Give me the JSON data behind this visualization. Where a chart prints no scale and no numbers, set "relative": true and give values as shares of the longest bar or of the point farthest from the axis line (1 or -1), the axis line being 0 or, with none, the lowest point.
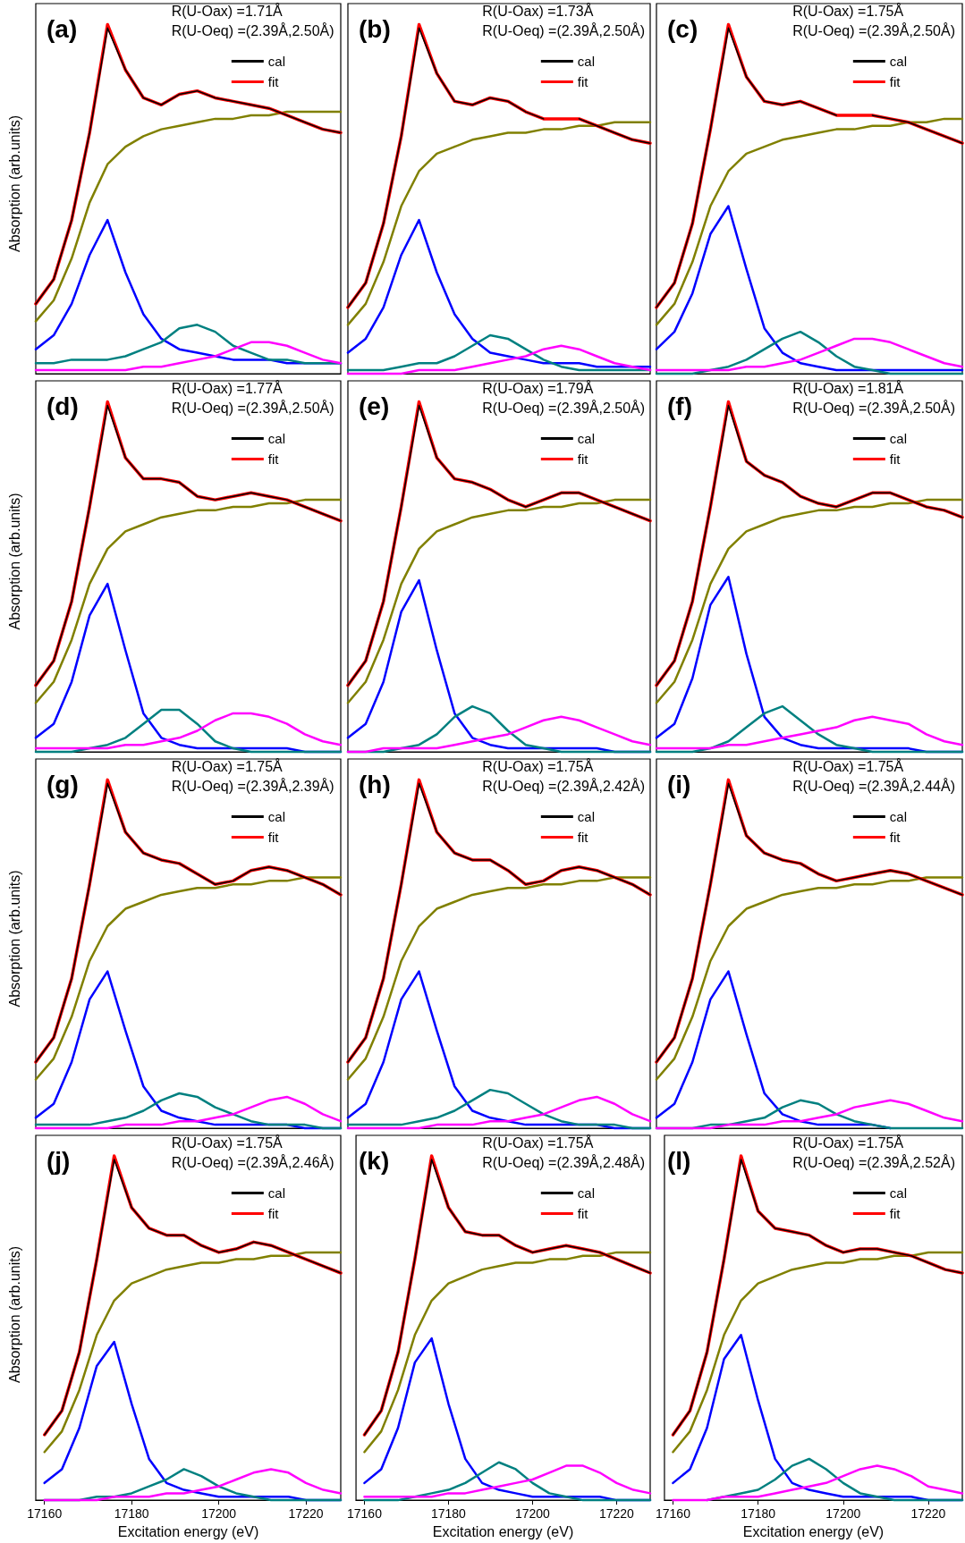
{
  "chart_data": [
    {
      "type": "line",
      "tick_labels": false,
      "ylabel": "Absorption (arb.units)",
      "relative": true,
      "legend": "top right",
      "annotations": [
        "(a)",
        "R(U-Oax) =1.71Å",
        "R(U-Oeq) =(2.39Å,2.50Å)"
      ],
      "categories": [
        null,
        null,
        null,
        null,
        null,
        null,
        null,
        null,
        null,
        null,
        null,
        null,
        null,
        null,
        null,
        null,
        null,
        null
      ],
      "series": [
        {
          "name": "cal",
          "color": "#000000",
          "values": [
            0.2,
            0.27,
            0.44,
            0.69,
            0.99,
            0.87,
            0.79,
            0.77,
            0.8,
            0.81,
            0.79,
            0.78,
            0.77,
            0.76,
            0.74,
            0.72,
            0.7,
            0.69
          ]
        },
        {
          "name": "fit",
          "color": "#ff0000",
          "values": [
            0.2,
            0.27,
            0.44,
            0.69,
            1.0,
            0.87,
            0.79,
            0.77,
            0.8,
            0.81,
            0.79,
            0.78,
            0.77,
            0.76,
            0.74,
            0.72,
            0.7,
            0.69
          ]
        },
        {
          "color": "#808000",
          "values": [
            0.15,
            0.21,
            0.33,
            0.49,
            0.6,
            0.65,
            0.68,
            0.7,
            0.71,
            0.72,
            0.73,
            0.73,
            0.74,
            0.74,
            0.75,
            0.75,
            0.75,
            0.75
          ]
        },
        {
          "color": "#0000ff",
          "values": [
            0.07,
            0.11,
            0.2,
            0.34,
            0.44,
            0.29,
            0.17,
            0.1,
            0.07,
            0.06,
            0.05,
            0.04,
            0.04,
            0.04,
            0.03,
            0.03,
            0.03,
            0.03
          ]
        },
        {
          "color": "#008080",
          "values": [
            0.03,
            0.03,
            0.04,
            0.04,
            0.04,
            0.05,
            0.07,
            0.09,
            0.13,
            0.14,
            0.12,
            0.08,
            0.06,
            0.04,
            0.04,
            0.03,
            0.03,
            0.03
          ]
        },
        {
          "color": "#ff00ff",
          "values": [
            0.01,
            0.01,
            0.01,
            0.01,
            0.01,
            0.01,
            0.02,
            0.02,
            0.03,
            0.04,
            0.05,
            0.07,
            0.09,
            0.09,
            0.08,
            0.06,
            0.04,
            0.03
          ]
        }
      ]
    },
    {
      "type": "line",
      "tick_labels": false,
      "relative": true,
      "legend": "top right",
      "annotations": [
        "(b)",
        "R(U-Oax) =1.73Å",
        "R(U-Oeq) =(2.39Å,2.50Å)"
      ],
      "categories": [
        null,
        null,
        null,
        null,
        null,
        null,
        null,
        null,
        null,
        null,
        null,
        null,
        null,
        null,
        null,
        null,
        null,
        null
      ],
      "series": [
        {
          "name": "cal",
          "color": "#000000",
          "values": [
            0.19,
            0.26,
            0.43,
            0.68,
            0.99,
            0.86,
            0.78,
            0.77,
            0.79,
            0.78,
            0.75,
            0.73,
            null,
            0.73,
            0.71,
            0.69,
            0.67,
            0.66
          ]
        },
        {
          "name": "fit",
          "color": "#ff0000",
          "values": [
            0.19,
            0.26,
            0.43,
            0.68,
            1.0,
            0.86,
            0.78,
            0.77,
            0.79,
            0.78,
            0.75,
            0.73,
            0.73,
            0.73,
            0.71,
            0.69,
            0.67,
            0.66
          ]
        },
        {
          "color": "#808000",
          "values": [
            0.14,
            0.2,
            0.32,
            0.48,
            0.58,
            0.63,
            0.65,
            0.67,
            0.68,
            0.69,
            0.69,
            0.7,
            0.7,
            0.71,
            0.71,
            0.72,
            0.72,
            0.72
          ]
        },
        {
          "color": "#0000ff",
          "values": [
            0.06,
            0.1,
            0.19,
            0.34,
            0.44,
            0.29,
            0.17,
            0.1,
            0.06,
            0.05,
            0.04,
            0.03,
            0.03,
            0.03,
            0.02,
            0.02,
            0.02,
            0.02
          ]
        },
        {
          "color": "#008080",
          "values": [
            0.01,
            0.01,
            0.01,
            0.02,
            0.03,
            0.03,
            0.05,
            0.08,
            0.11,
            0.1,
            0.07,
            0.04,
            0.02,
            0.01,
            0.01,
            0.01,
            0.01,
            0.01
          ]
        },
        {
          "color": "#ff00ff",
          "values": [
            0.0,
            0.0,
            0.0,
            0.0,
            0.01,
            0.01,
            0.01,
            0.02,
            0.03,
            0.04,
            0.05,
            0.07,
            0.08,
            0.07,
            0.05,
            0.03,
            0.02,
            0.01
          ]
        }
      ]
    },
    {
      "type": "line",
      "tick_labels": false,
      "relative": true,
      "legend": "top right",
      "annotations": [
        "(c)",
        "R(U-Oax) =1.75Å",
        "R(U-Oeq) =(2.39Å,2.50Å)"
      ],
      "categories": [
        null,
        null,
        null,
        null,
        null,
        null,
        null,
        null,
        null,
        null,
        null,
        null,
        null,
        null,
        null,
        null,
        null,
        null
      ],
      "series": [
        {
          "name": "cal",
          "color": "#000000",
          "values": [
            0.19,
            0.26,
            0.43,
            0.7,
            0.99,
            0.85,
            0.78,
            0.77,
            0.78,
            0.76,
            0.74,
            null,
            0.74,
            0.73,
            0.72,
            0.7,
            0.68,
            0.66
          ]
        },
        {
          "name": "fit",
          "color": "#ff0000",
          "values": [
            0.19,
            0.26,
            0.43,
            0.7,
            1.0,
            0.85,
            0.78,
            0.77,
            0.78,
            0.76,
            0.74,
            0.74,
            0.74,
            0.73,
            0.72,
            0.7,
            0.68,
            0.66
          ]
        },
        {
          "color": "#808000",
          "values": [
            0.14,
            0.2,
            0.32,
            0.48,
            0.58,
            0.63,
            0.65,
            0.67,
            0.68,
            0.69,
            0.7,
            0.7,
            0.71,
            0.71,
            0.72,
            0.72,
            0.73,
            0.73
          ]
        },
        {
          "color": "#0000ff",
          "values": [
            0.07,
            0.12,
            0.23,
            0.4,
            0.48,
            0.3,
            0.13,
            0.06,
            0.03,
            0.02,
            0.01,
            0.01,
            0.01,
            0.01,
            0.01,
            0.01,
            0.01,
            0.01
          ]
        },
        {
          "color": "#008080",
          "values": [
            0.0,
            0.0,
            0.0,
            0.01,
            0.02,
            0.04,
            0.07,
            0.1,
            0.12,
            0.09,
            0.05,
            0.02,
            0.01,
            0.0,
            0.0,
            0.0,
            0.0,
            0.0
          ]
        },
        {
          "color": "#ff00ff",
          "values": [
            0.01,
            0.01,
            0.01,
            0.01,
            0.01,
            0.02,
            0.02,
            0.03,
            0.04,
            0.06,
            0.08,
            0.1,
            0.1,
            0.09,
            0.07,
            0.05,
            0.03,
            0.02
          ]
        }
      ]
    },
    {
      "type": "line",
      "tick_labels": false,
      "ylabel": "Absorption (arb.units)",
      "relative": true,
      "legend": "top right",
      "annotations": [
        "(d)",
        "R(U-Oax) =1.77Å",
        "R(U-Oeq) =(2.39Å,2.50Å)"
      ],
      "categories": [
        null,
        null,
        null,
        null,
        null,
        null,
        null,
        null,
        null,
        null,
        null,
        null,
        null,
        null,
        null,
        null,
        null,
        null
      ],
      "series": [
        {
          "name": "cal",
          "color": "#000000",
          "values": [
            0.19,
            0.26,
            0.43,
            0.7,
            0.99,
            0.84,
            0.78,
            0.78,
            0.77,
            0.73,
            0.72,
            0.73,
            0.74,
            0.73,
            0.72,
            0.7,
            0.68,
            0.66
          ]
        },
        {
          "name": "fit",
          "color": "#ff0000",
          "values": [
            0.19,
            0.26,
            0.43,
            0.7,
            1.0,
            0.84,
            0.78,
            0.78,
            0.77,
            0.73,
            0.72,
            0.73,
            0.74,
            0.73,
            0.72,
            0.7,
            0.68,
            0.66
          ]
        },
        {
          "color": "#808000",
          "values": [
            0.14,
            0.2,
            0.32,
            0.48,
            0.58,
            0.63,
            0.65,
            0.67,
            0.68,
            0.69,
            0.69,
            0.7,
            0.7,
            0.71,
            0.71,
            0.72,
            0.72,
            0.72
          ]
        },
        {
          "color": "#0000ff",
          "values": [
            0.04,
            0.08,
            0.2,
            0.39,
            0.48,
            0.29,
            0.11,
            0.04,
            0.02,
            0.01,
            0.01,
            0.01,
            0.01,
            0.01,
            0.01,
            0.0,
            0.0,
            0.0
          ]
        },
        {
          "color": "#008080",
          "values": [
            0.0,
            0.0,
            0.0,
            0.01,
            0.02,
            0.04,
            0.08,
            0.12,
            0.12,
            0.08,
            0.03,
            0.01,
            0.0,
            0.0,
            0.0,
            0.0,
            0.0,
            0.0
          ]
        },
        {
          "color": "#ff00ff",
          "values": [
            0.01,
            0.01,
            0.01,
            0.01,
            0.01,
            0.02,
            0.02,
            0.03,
            0.04,
            0.06,
            0.09,
            0.11,
            0.11,
            0.1,
            0.08,
            0.05,
            0.03,
            0.02
          ]
        }
      ]
    },
    {
      "type": "line",
      "tick_labels": false,
      "relative": true,
      "legend": "top right",
      "annotations": [
        "(e)",
        "R(U-Oax) =1.79Å",
        "R(U-Oeq) =(2.39Å,2.50Å)"
      ],
      "categories": [
        null,
        null,
        null,
        null,
        null,
        null,
        null,
        null,
        null,
        null,
        null,
        null,
        null,
        null,
        null,
        null,
        null,
        null
      ],
      "series": [
        {
          "name": "cal",
          "color": "#000000",
          "values": [
            0.19,
            0.26,
            0.43,
            0.7,
            0.99,
            0.84,
            0.78,
            0.77,
            0.75,
            0.72,
            0.7,
            0.72,
            0.74,
            0.74,
            0.72,
            0.7,
            0.68,
            0.66
          ]
        },
        {
          "name": "fit",
          "color": "#ff0000",
          "values": [
            0.19,
            0.26,
            0.43,
            0.7,
            1.0,
            0.84,
            0.78,
            0.77,
            0.75,
            0.72,
            0.7,
            0.72,
            0.74,
            0.74,
            0.72,
            0.7,
            0.68,
            0.66
          ]
        },
        {
          "color": "#808000",
          "values": [
            0.14,
            0.2,
            0.32,
            0.48,
            0.58,
            0.63,
            0.65,
            0.67,
            0.68,
            0.69,
            0.69,
            0.7,
            0.7,
            0.71,
            0.71,
            0.72,
            0.72,
            0.72
          ]
        },
        {
          "color": "#0000ff",
          "values": [
            0.04,
            0.08,
            0.2,
            0.4,
            0.49,
            0.29,
            0.11,
            0.04,
            0.02,
            0.01,
            0.01,
            0.01,
            0.01,
            0.01,
            0.01,
            0.0,
            0.0,
            0.0
          ]
        },
        {
          "color": "#008080",
          "values": [
            0.0,
            0.0,
            0.0,
            0.01,
            0.02,
            0.05,
            0.1,
            0.13,
            0.11,
            0.06,
            0.02,
            0.01,
            0.0,
            0.0,
            0.0,
            0.0,
            0.0,
            0.0
          ]
        },
        {
          "color": "#ff00ff",
          "values": [
            0.0,
            0.0,
            0.01,
            0.01,
            0.01,
            0.01,
            0.02,
            0.03,
            0.04,
            0.05,
            0.07,
            0.09,
            0.1,
            0.09,
            0.07,
            0.05,
            0.03,
            0.02
          ]
        }
      ]
    },
    {
      "type": "line",
      "tick_labels": false,
      "relative": true,
      "legend": "top right",
      "annotations": [
        "(f)",
        "R(U-Oax) =1.81Å",
        "R(U-Oeq) =(2.39Å,2.50Å)"
      ],
      "categories": [
        null,
        null,
        null,
        null,
        null,
        null,
        null,
        null,
        null,
        null,
        null,
        null,
        null,
        null,
        null,
        null,
        null,
        null
      ],
      "series": [
        {
          "name": "cal",
          "color": "#000000",
          "values": [
            0.19,
            0.26,
            0.43,
            0.7,
            0.99,
            0.83,
            0.79,
            0.77,
            0.73,
            0.71,
            0.7,
            0.72,
            0.74,
            0.74,
            0.72,
            0.7,
            0.69,
            0.67
          ]
        },
        {
          "name": "fit",
          "color": "#ff0000",
          "values": [
            0.19,
            0.26,
            0.43,
            0.7,
            1.0,
            0.83,
            0.79,
            0.77,
            0.73,
            0.71,
            0.7,
            0.72,
            0.74,
            0.74,
            0.72,
            0.7,
            0.69,
            0.67
          ]
        },
        {
          "color": "#808000",
          "values": [
            0.14,
            0.2,
            0.32,
            0.48,
            0.58,
            0.63,
            0.65,
            0.67,
            0.68,
            0.69,
            0.69,
            0.7,
            0.7,
            0.71,
            0.71,
            0.72,
            0.72,
            0.72
          ]
        },
        {
          "color": "#0000ff",
          "values": [
            0.04,
            0.08,
            0.21,
            0.42,
            0.5,
            0.28,
            0.1,
            0.04,
            0.02,
            0.01,
            0.01,
            0.01,
            0.01,
            0.01,
            0.01,
            0.0,
            0.0,
            0.0
          ]
        },
        {
          "color": "#008080",
          "values": [
            0.0,
            0.0,
            0.0,
            0.01,
            0.03,
            0.07,
            0.11,
            0.13,
            0.09,
            0.05,
            0.02,
            0.01,
            0.0,
            0.0,
            0.0,
            0.0,
            0.0,
            0.0
          ]
        },
        {
          "color": "#ff00ff",
          "values": [
            0.01,
            0.01,
            0.01,
            0.01,
            0.02,
            0.02,
            0.03,
            0.04,
            0.05,
            0.06,
            0.07,
            0.09,
            0.1,
            0.09,
            0.08,
            0.05,
            0.03,
            0.02
          ]
        }
      ]
    },
    {
      "type": "line",
      "tick_labels": false,
      "ylabel": "Absorption (arb.units)",
      "relative": true,
      "legend": "top right",
      "annotations": [
        "(g)",
        "R(U-Oax) =1.75Å",
        "R(U-Oeq) =(2.39Å,2.39Å)"
      ],
      "categories": [
        null,
        null,
        null,
        null,
        null,
        null,
        null,
        null,
        null,
        null,
        null,
        null,
        null,
        null,
        null,
        null,
        null,
        null
      ],
      "series": [
        {
          "name": "cal",
          "color": "#000000",
          "values": [
            0.19,
            0.26,
            0.43,
            0.7,
            0.99,
            0.85,
            0.79,
            0.77,
            0.76,
            0.73,
            0.7,
            0.71,
            0.74,
            0.75,
            0.74,
            0.72,
            0.7,
            0.67
          ]
        },
        {
          "name": "fit",
          "color": "#ff0000",
          "values": [
            0.19,
            0.26,
            0.43,
            0.7,
            1.0,
            0.85,
            0.79,
            0.77,
            0.76,
            0.73,
            0.7,
            0.71,
            0.74,
            0.75,
            0.74,
            0.72,
            0.7,
            0.67
          ]
        },
        {
          "color": "#808000",
          "values": [
            0.14,
            0.2,
            0.32,
            0.48,
            0.58,
            0.63,
            0.65,
            0.67,
            0.68,
            0.69,
            0.69,
            0.7,
            0.7,
            0.71,
            0.71,
            0.72,
            0.72,
            0.72
          ]
        },
        {
          "color": "#0000ff",
          "values": [
            0.03,
            0.07,
            0.19,
            0.37,
            0.45,
            0.28,
            0.12,
            0.05,
            0.03,
            0.02,
            0.01,
            0.01,
            0.01,
            0.01,
            0.01,
            0.0,
            0.0,
            0.0
          ]
        },
        {
          "color": "#008080",
          "values": [
            0.01,
            0.01,
            0.01,
            0.01,
            0.02,
            0.03,
            0.05,
            0.08,
            0.1,
            0.09,
            0.06,
            0.04,
            0.02,
            0.01,
            0.01,
            0.01,
            0.0,
            0.0
          ]
        },
        {
          "color": "#ff00ff",
          "values": [
            0.0,
            0.0,
            0.0,
            0.0,
            0.0,
            0.01,
            0.01,
            0.01,
            0.02,
            0.02,
            0.03,
            0.04,
            0.06,
            0.08,
            0.09,
            0.07,
            0.04,
            0.02
          ]
        }
      ]
    },
    {
      "type": "line",
      "tick_labels": false,
      "relative": true,
      "legend": "top right",
      "annotations": [
        "(h)",
        "R(U-Oax) =1.75Å",
        "R(U-Oeq) =(2.39Å,2.42Å)"
      ],
      "categories": [
        null,
        null,
        null,
        null,
        null,
        null,
        null,
        null,
        null,
        null,
        null,
        null,
        null,
        null,
        null,
        null,
        null,
        null
      ],
      "series": [
        {
          "name": "cal",
          "color": "#000000",
          "values": [
            0.19,
            0.26,
            0.43,
            0.7,
            0.99,
            0.85,
            0.79,
            0.77,
            0.77,
            0.74,
            0.7,
            0.71,
            0.74,
            0.75,
            0.74,
            0.72,
            0.7,
            0.67
          ]
        },
        {
          "name": "fit",
          "color": "#ff0000",
          "values": [
            0.19,
            0.26,
            0.43,
            0.7,
            1.0,
            0.85,
            0.79,
            0.77,
            0.77,
            0.74,
            0.7,
            0.71,
            0.74,
            0.75,
            0.74,
            0.72,
            0.7,
            0.67
          ]
        },
        {
          "color": "#808000",
          "values": [
            0.14,
            0.2,
            0.32,
            0.48,
            0.58,
            0.63,
            0.65,
            0.67,
            0.68,
            0.69,
            0.69,
            0.7,
            0.7,
            0.71,
            0.71,
            0.72,
            0.72,
            0.72
          ]
        },
        {
          "color": "#0000ff",
          "values": [
            0.03,
            0.07,
            0.19,
            0.37,
            0.45,
            0.28,
            0.12,
            0.05,
            0.03,
            0.02,
            0.01,
            0.01,
            0.01,
            0.01,
            0.01,
            0.0,
            0.0,
            0.0
          ]
        },
        {
          "color": "#008080",
          "values": [
            0.01,
            0.01,
            0.01,
            0.01,
            0.02,
            0.03,
            0.05,
            0.08,
            0.11,
            0.1,
            0.07,
            0.04,
            0.02,
            0.01,
            0.01,
            0.01,
            0.0,
            0.0
          ]
        },
        {
          "color": "#ff00ff",
          "values": [
            0.0,
            0.0,
            0.0,
            0.0,
            0.0,
            0.01,
            0.01,
            0.01,
            0.02,
            0.02,
            0.03,
            0.04,
            0.06,
            0.08,
            0.09,
            0.07,
            0.04,
            0.02
          ]
        }
      ]
    },
    {
      "type": "line",
      "tick_labels": false,
      "relative": true,
      "legend": "top right",
      "annotations": [
        "(i)",
        "R(U-Oax) =1.75Å",
        "R(U-Oeq) =(2.39Å,2.44Å)"
      ],
      "categories": [
        null,
        null,
        null,
        null,
        null,
        null,
        null,
        null,
        null,
        null,
        null,
        null,
        null,
        null,
        null,
        null,
        null,
        null
      ],
      "series": [
        {
          "name": "cal",
          "color": "#000000",
          "values": [
            0.19,
            0.26,
            0.43,
            0.7,
            0.99,
            0.84,
            0.79,
            0.77,
            0.76,
            0.73,
            0.71,
            0.72,
            0.73,
            0.74,
            0.73,
            0.71,
            0.69,
            0.67
          ]
        },
        {
          "name": "fit",
          "color": "#ff0000",
          "values": [
            0.19,
            0.26,
            0.43,
            0.7,
            1.0,
            0.84,
            0.79,
            0.77,
            0.76,
            0.73,
            0.71,
            0.72,
            0.73,
            0.74,
            0.73,
            0.71,
            0.69,
            0.67
          ]
        },
        {
          "color": "#808000",
          "values": [
            0.14,
            0.2,
            0.32,
            0.48,
            0.58,
            0.63,
            0.65,
            0.67,
            0.68,
            0.69,
            0.69,
            0.7,
            0.7,
            0.71,
            0.71,
            0.72,
            0.72,
            0.72
          ]
        },
        {
          "color": "#0000ff",
          "values": [
            0.03,
            0.07,
            0.19,
            0.37,
            0.45,
            0.27,
            0.1,
            0.04,
            0.02,
            0.01,
            0.01,
            0.01,
            0.01,
            0.0,
            null,
            null,
            null,
            null
          ]
        },
        {
          "color": "#008080",
          "values": [
            0.0,
            0.0,
            0.0,
            0.01,
            0.01,
            0.02,
            0.03,
            0.06,
            0.08,
            0.07,
            0.04,
            0.02,
            0.01,
            0.0,
            0.0,
            0.0,
            0.0,
            0.0
          ]
        },
        {
          "color": "#ff00ff",
          "values": [
            0.0,
            0.0,
            0.0,
            0.0,
            0.01,
            0.01,
            0.01,
            0.02,
            0.02,
            0.03,
            0.04,
            0.06,
            0.07,
            0.08,
            0.07,
            0.05,
            0.03,
            0.02
          ]
        }
      ]
    },
    {
      "type": "line",
      "tick_labels": "x",
      "xlabel": "Excitation energy (eV)",
      "ylabel": "Absorption (arb.units)",
      "relative": true,
      "legend": "top right",
      "xlim": [
        17158,
        17228
      ],
      "xticks": [
        17160,
        17180,
        17200,
        17220
      ],
      "annotations": [
        "(j)",
        "R(U-Oax) =1.75Å",
        "R(U-Oeq) =(2.39Å,2.46Å)"
      ],
      "x": [
        17160,
        17164,
        17168,
        17172,
        17176,
        17180,
        17184,
        17188,
        17192,
        17196,
        17200,
        17204,
        17208,
        17212,
        17216,
        17220,
        17224,
        17228
      ],
      "series": [
        {
          "name": "cal",
          "color": "#000000",
          "values": [
            0.19,
            0.26,
            0.43,
            0.7,
            0.99,
            0.85,
            0.79,
            0.77,
            0.77,
            0.74,
            0.72,
            0.73,
            0.75,
            0.74,
            0.72,
            0.7,
            0.68,
            0.66
          ]
        },
        {
          "name": "fit",
          "color": "#ff0000",
          "values": [
            0.19,
            0.26,
            0.43,
            0.7,
            1.0,
            0.85,
            0.79,
            0.77,
            0.77,
            0.74,
            0.72,
            0.73,
            0.75,
            0.74,
            0.72,
            0.7,
            0.68,
            0.66
          ]
        },
        {
          "color": "#808000",
          "values": [
            0.14,
            0.2,
            0.32,
            0.48,
            0.58,
            0.63,
            0.65,
            0.67,
            0.68,
            0.69,
            0.69,
            0.7,
            0.7,
            0.71,
            0.71,
            0.72,
            0.72,
            0.72
          ]
        },
        {
          "color": "#0000ff",
          "values": [
            0.05,
            0.09,
            0.21,
            0.39,
            0.46,
            0.28,
            0.12,
            0.05,
            0.03,
            0.02,
            0.01,
            0.01,
            0.01,
            0.01,
            0.01,
            0.0,
            0.0,
            0.0
          ]
        },
        {
          "color": "#008080",
          "values": [
            0.0,
            0.0,
            0.0,
            0.01,
            0.01,
            0.02,
            0.04,
            0.06,
            0.09,
            0.07,
            0.04,
            0.02,
            0.01,
            0.0,
            0.0,
            0.0,
            0.0,
            0.0
          ]
        },
        {
          "color": "#ff00ff",
          "values": [
            0.0,
            0.0,
            0.0,
            0.0,
            0.01,
            0.01,
            0.01,
            0.02,
            0.02,
            0.03,
            0.04,
            0.06,
            0.08,
            0.09,
            0.08,
            0.05,
            0.03,
            0.02
          ]
        }
      ]
    },
    {
      "type": "line",
      "tick_labels": "x",
      "xlabel": "Excitation energy (eV)",
      "relative": true,
      "legend": "top right",
      "xlim": [
        17158,
        17228
      ],
      "xticks": [
        17160,
        17180,
        17200,
        17220
      ],
      "annotations": [
        "(k)",
        "R(U-Oax) =1.75Å",
        "R(U-Oeq) =(2.39Å,2.48Å)"
      ],
      "x": [
        17160,
        17164,
        17168,
        17172,
        17176,
        17180,
        17184,
        17188,
        17192,
        17196,
        17200,
        17204,
        17208,
        17212,
        17216,
        17220,
        17224,
        17228
      ],
      "series": [
        {
          "name": "cal",
          "color": "#000000",
          "values": [
            0.19,
            0.26,
            0.43,
            0.7,
            0.99,
            0.85,
            0.78,
            0.77,
            0.77,
            0.74,
            0.72,
            0.73,
            0.74,
            0.73,
            0.72,
            0.7,
            0.68,
            0.66
          ]
        },
        {
          "name": "fit",
          "color": "#ff0000",
          "values": [
            0.19,
            0.26,
            0.43,
            0.7,
            1.0,
            0.85,
            0.78,
            0.77,
            0.77,
            0.74,
            0.72,
            0.73,
            0.74,
            0.73,
            0.72,
            0.7,
            0.68,
            0.66
          ]
        },
        {
          "color": "#808000",
          "values": [
            0.14,
            0.2,
            0.32,
            0.48,
            0.58,
            0.63,
            0.65,
            0.67,
            0.68,
            0.69,
            0.69,
            0.7,
            0.7,
            0.71,
            0.71,
            0.72,
            0.72,
            0.72
          ]
        },
        {
          "color": "#0000ff",
          "values": [
            0.05,
            0.09,
            0.21,
            0.4,
            0.47,
            0.28,
            0.12,
            0.05,
            0.03,
            0.02,
            0.01,
            0.01,
            0.01,
            0.01,
            0.01,
            0.0,
            0.0,
            0.0
          ]
        },
        {
          "color": "#008080",
          "values": [
            0.0,
            0.0,
            0.0,
            0.01,
            0.02,
            0.03,
            0.05,
            0.08,
            0.11,
            0.09,
            0.05,
            0.02,
            0.01,
            0.0,
            0.0,
            0.0,
            0.0,
            0.0
          ]
        },
        {
          "color": "#ff00ff",
          "values": [
            0.01,
            0.01,
            0.01,
            0.01,
            0.01,
            0.02,
            0.02,
            0.03,
            0.04,
            0.05,
            0.06,
            0.08,
            0.1,
            0.1,
            0.08,
            0.05,
            0.03,
            0.02
          ]
        }
      ]
    },
    {
      "type": "line",
      "tick_labels": "x",
      "xlabel": "Excitation energy (eV)",
      "relative": true,
      "legend": "top right",
      "xlim": [
        17158,
        17228
      ],
      "xticks": [
        17160,
        17180,
        17200,
        17220
      ],
      "annotations": [
        "(l)",
        "R(U-Oax) =1.75Å",
        "R(U-Oeq) =(2.39Å,2.52Å)"
      ],
      "x": [
        17160,
        17164,
        17168,
        17172,
        17176,
        17180,
        17184,
        17188,
        17192,
        17196,
        17200,
        17204,
        17208,
        17212,
        17216,
        17220,
        17224,
        17228
      ],
      "series": [
        {
          "name": "cal",
          "color": "#000000",
          "values": [
            0.19,
            0.26,
            0.43,
            0.7,
            0.99,
            0.84,
            0.79,
            0.78,
            0.77,
            0.74,
            0.72,
            0.73,
            0.73,
            0.72,
            0.71,
            0.69,
            0.67,
            0.66
          ]
        },
        {
          "name": "fit",
          "color": "#ff0000",
          "values": [
            0.19,
            0.26,
            0.43,
            0.7,
            1.0,
            0.84,
            0.79,
            0.78,
            0.77,
            0.74,
            0.72,
            0.73,
            0.73,
            0.72,
            0.71,
            0.69,
            0.67,
            0.66
          ]
        },
        {
          "color": "#808000",
          "values": [
            0.14,
            0.2,
            0.32,
            0.48,
            0.58,
            0.63,
            0.65,
            0.67,
            0.68,
            0.69,
            0.69,
            0.7,
            0.7,
            0.71,
            0.71,
            0.72,
            0.72,
            0.72
          ]
        },
        {
          "color": "#0000ff",
          "values": [
            0.05,
            0.09,
            0.21,
            0.41,
            0.48,
            0.29,
            0.12,
            0.05,
            0.03,
            0.02,
            0.01,
            0.01,
            0.01,
            0.01,
            0.01,
            0.0,
            0.0,
            0.0
          ]
        },
        {
          "color": "#008080",
          "values": [
            null,
            null,
            0.0,
            0.01,
            0.02,
            0.03,
            0.06,
            0.1,
            0.12,
            0.09,
            0.05,
            0.02,
            0.01,
            0.0,
            0.0,
            0.0,
            0.0,
            0.0
          ]
        },
        {
          "color": "#ff00ff",
          "values": [
            0.0,
            0.0,
            0.0,
            0.01,
            0.01,
            0.01,
            0.02,
            0.03,
            0.04,
            0.05,
            0.07,
            0.09,
            0.1,
            0.09,
            0.07,
            0.04,
            0.03,
            0.02
          ]
        }
      ]
    }
  ]
}
